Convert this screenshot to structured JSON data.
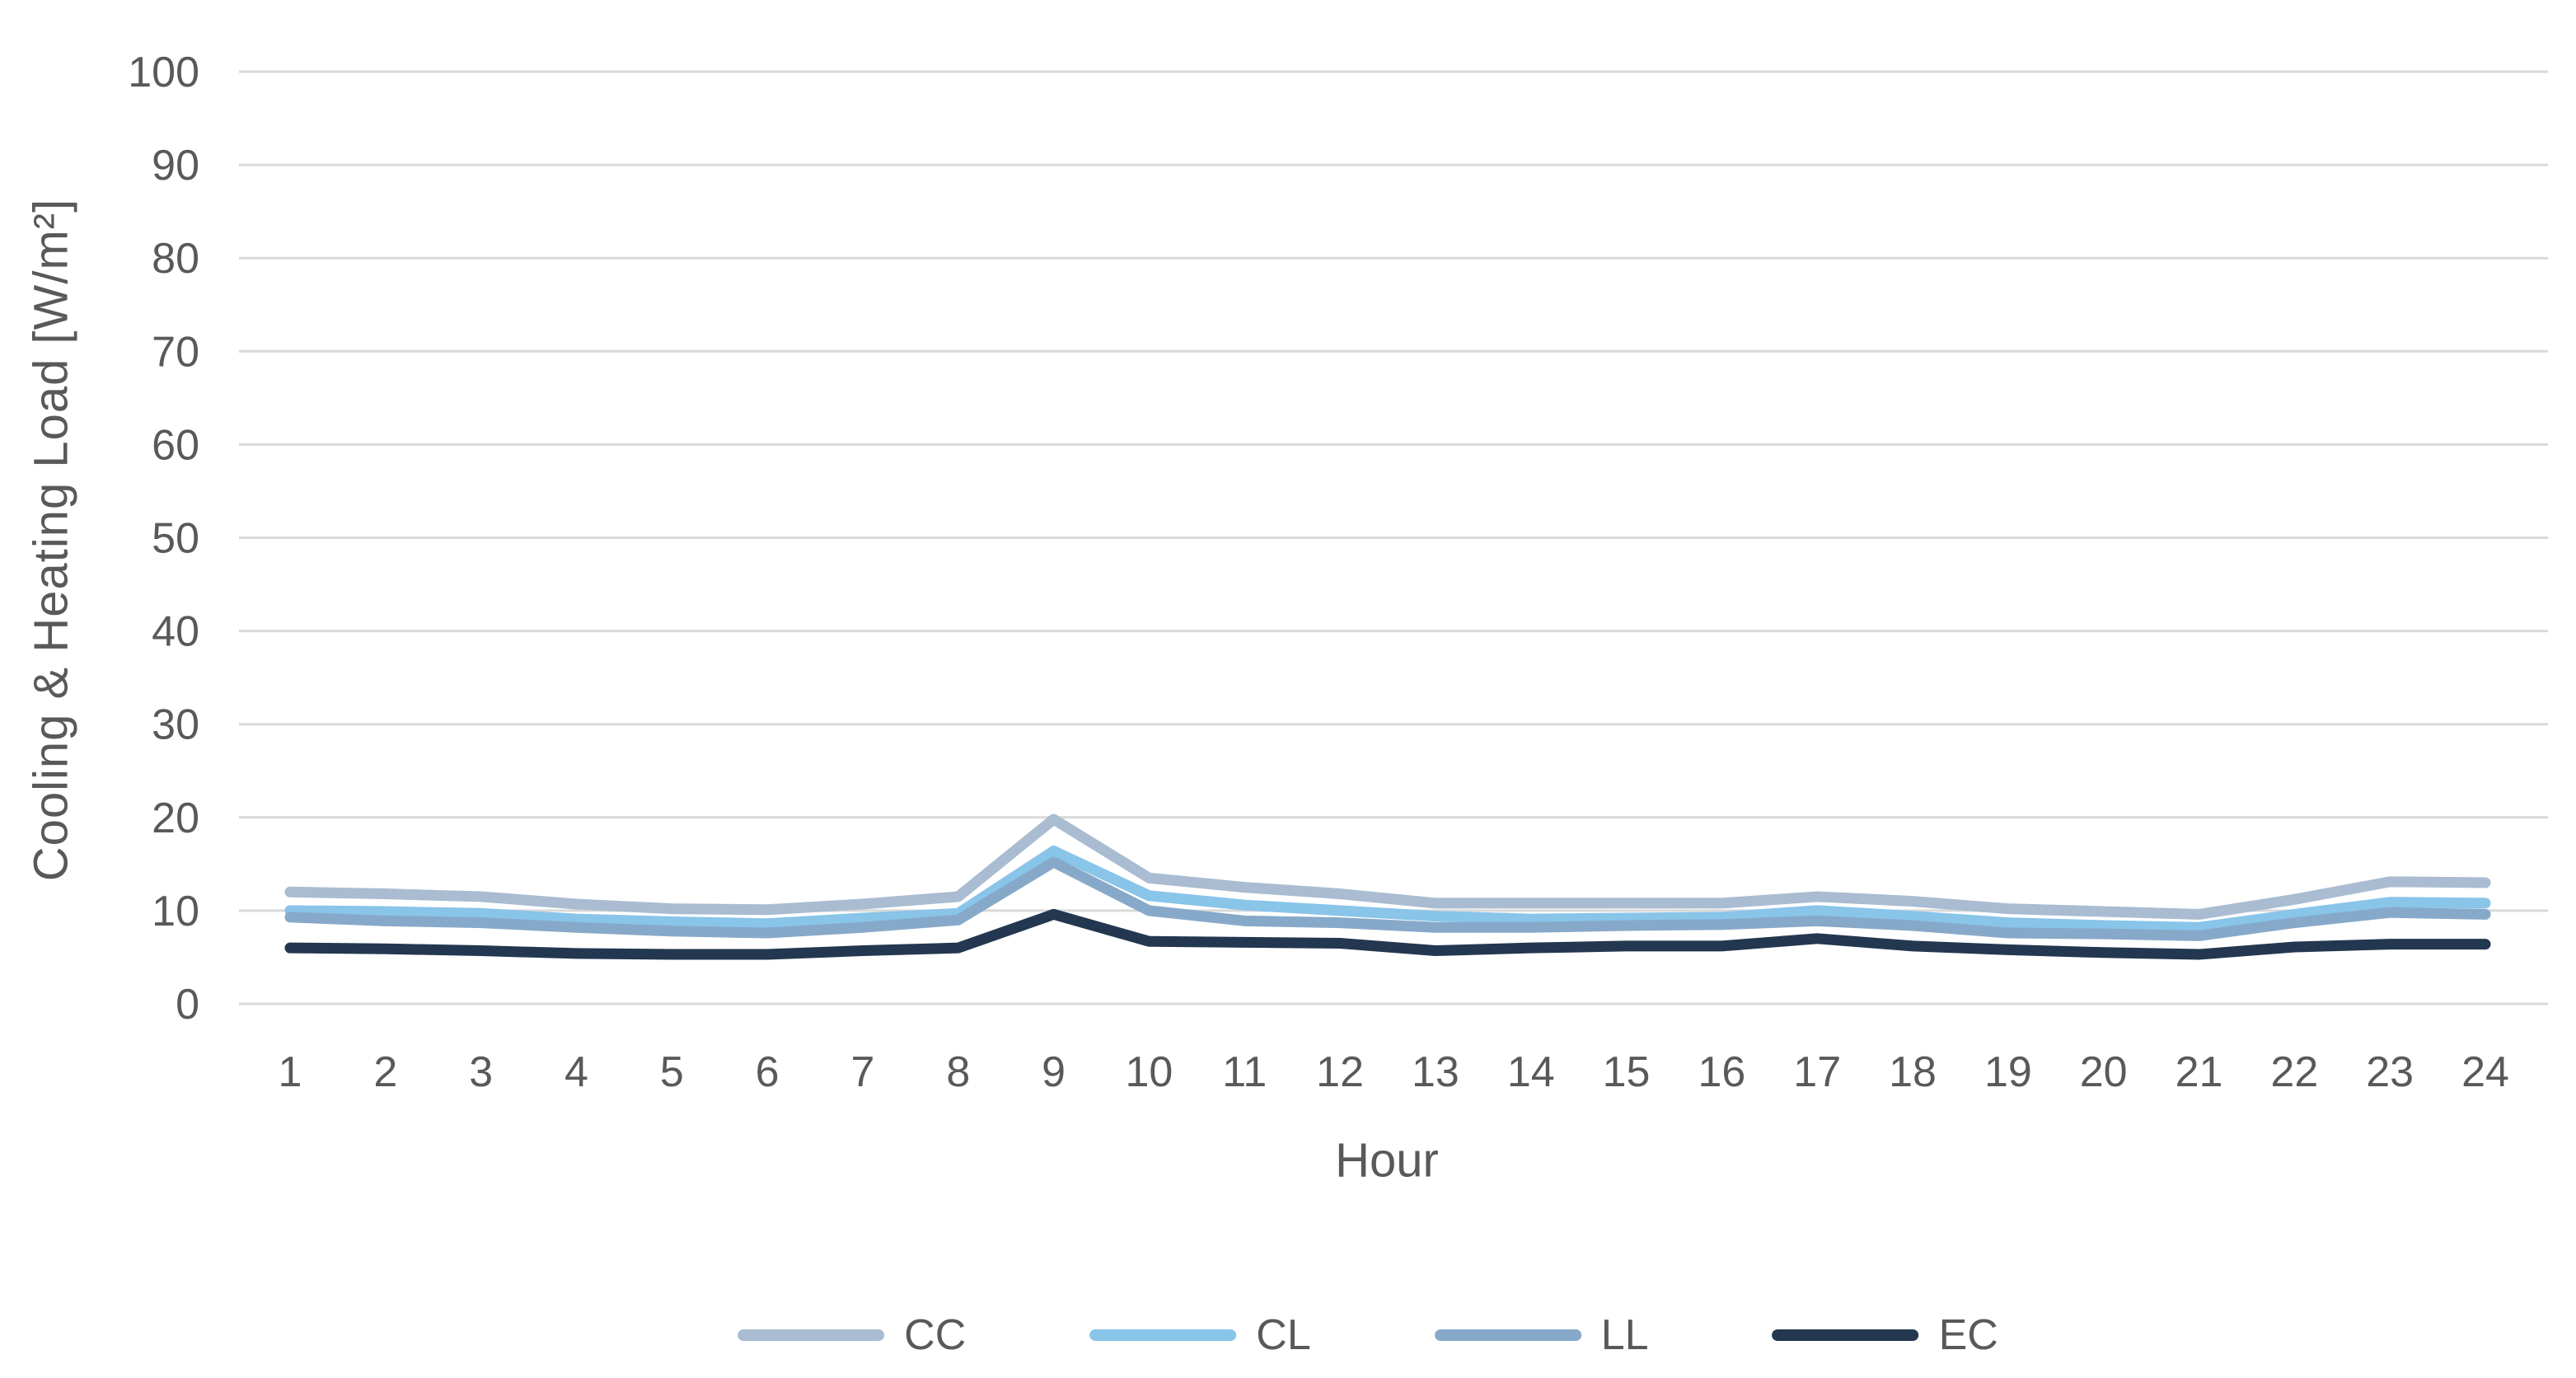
{
  "chart_data": {
    "type": "line",
    "title": "",
    "xlabel": "Hour",
    "ylabel": "Cooling & Heating Load [W/m²]",
    "x": [
      1,
      2,
      3,
      4,
      5,
      6,
      7,
      8,
      9,
      10,
      11,
      12,
      13,
      14,
      15,
      16,
      17,
      18,
      19,
      20,
      21,
      22,
      23,
      24
    ],
    "ylim": [
      0,
      100
    ],
    "ytick_step": 10,
    "grid": "horizontal",
    "legend_position": "bottom",
    "series": [
      {
        "name": "CC",
        "color": "#a9bcd1",
        "values": [
          12.0,
          11.8,
          11.5,
          10.7,
          10.2,
          10.1,
          10.7,
          11.5,
          19.8,
          13.5,
          12.5,
          11.8,
          10.8,
          10.8,
          10.8,
          10.8,
          11.5,
          11.0,
          10.2,
          9.9,
          9.6,
          11.2,
          13.1,
          13.0
        ]
      },
      {
        "name": "CL",
        "color": "#89c4e9",
        "values": [
          10.0,
          9.9,
          9.7,
          9.1,
          8.8,
          8.6,
          9.2,
          9.7,
          16.4,
          11.6,
          10.6,
          10.0,
          9.4,
          9.1,
          9.2,
          9.3,
          10.0,
          9.4,
          8.7,
          8.4,
          8.2,
          9.6,
          10.9,
          10.8
        ]
      },
      {
        "name": "LL",
        "color": "#87a9c9",
        "values": [
          9.3,
          8.9,
          8.7,
          8.2,
          7.8,
          7.6,
          8.2,
          9.0,
          15.2,
          10.0,
          8.9,
          8.7,
          8.2,
          8.2,
          8.4,
          8.5,
          8.9,
          8.4,
          7.6,
          7.5,
          7.3,
          8.7,
          9.8,
          9.6
        ]
      },
      {
        "name": "EC",
        "color": "#233750",
        "values": [
          6.0,
          5.9,
          5.7,
          5.4,
          5.3,
          5.3,
          5.7,
          6.0,
          9.6,
          6.7,
          6.6,
          6.5,
          5.7,
          6.0,
          6.2,
          6.2,
          7.0,
          6.2,
          5.8,
          5.5,
          5.3,
          6.1,
          6.4,
          6.4
        ]
      }
    ]
  },
  "colors": {
    "grid": "#d9d9d9",
    "tick_label": "#595959",
    "axis_title": "#595959"
  }
}
